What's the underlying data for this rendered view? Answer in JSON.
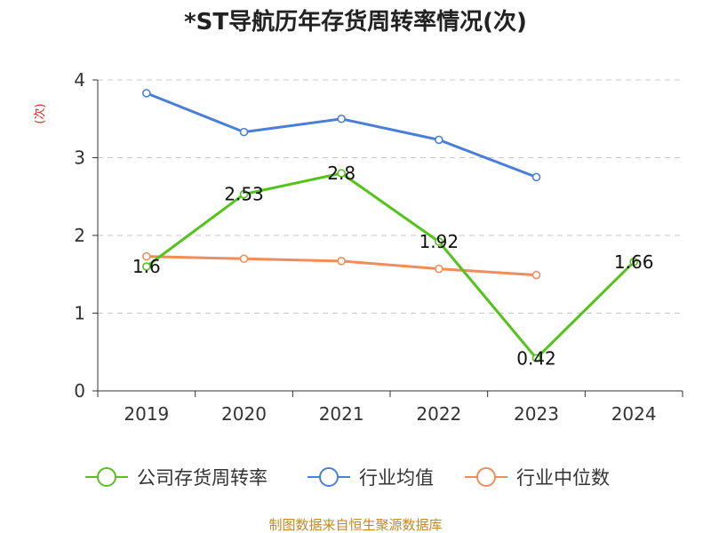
{
  "chart_data": {
    "type": "line",
    "title": "*ST导航历年存货周转率情况(次)",
    "ylabel": "(次)",
    "xlabel": "",
    "categories": [
      "2019",
      "2020",
      "2021",
      "2022",
      "2023",
      "2024"
    ],
    "ylim": [
      0,
      4
    ],
    "yticks": [
      0,
      1,
      2,
      3,
      4
    ],
    "grid": true,
    "legend_position": "bottom",
    "series": [
      {
        "name": "公司存货周转率",
        "color": "#52c41a",
        "values": [
          1.6,
          2.53,
          2.8,
          1.92,
          0.42,
          1.66
        ],
        "labels": [
          "1.6",
          "2.53",
          "2.8",
          "1.92",
          "0.42",
          "1.66"
        ],
        "show_labels": true
      },
      {
        "name": "行业均值",
        "color": "#4a7fd8",
        "values": [
          3.83,
          3.33,
          3.5,
          3.23,
          2.75,
          null
        ],
        "show_labels": false
      },
      {
        "name": "行业中位数",
        "color": "#f28c5a",
        "values": [
          1.73,
          1.7,
          1.67,
          1.57,
          1.49,
          null
        ],
        "show_labels": false
      }
    ],
    "source": "制图数据来自恒生聚源数据库"
  }
}
